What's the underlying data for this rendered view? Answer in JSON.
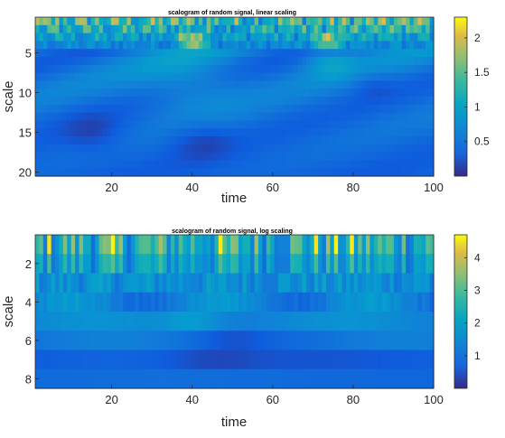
{
  "chart_data": [
    {
      "type": "heatmap",
      "title": "scalogram of random signal, linear scaling",
      "xlabel": "time",
      "ylabel": "scale",
      "xlim": [
        1,
        100
      ],
      "ylim": [
        1,
        20
      ],
      "xticks": [
        "20",
        "40",
        "60",
        "80",
        "100"
      ],
      "yticks": [
        "5",
        "10",
        "15",
        "20"
      ],
      "colorbar": {
        "range": [
          0,
          2.3
        ],
        "ticks": [
          "0.5",
          "1",
          "1.5",
          "2"
        ],
        "colormap": "parula"
      },
      "y_axis_reversed": true
    },
    {
      "type": "heatmap",
      "title": "scalogram of random signal, log scaling",
      "xlabel": "time",
      "ylabel": "scale",
      "xlim": [
        1,
        100
      ],
      "ylim": [
        1,
        8
      ],
      "xticks": [
        "20",
        "40",
        "60",
        "80",
        "100"
      ],
      "yticks": [
        "2",
        "4",
        "6",
        "8"
      ],
      "colorbar": {
        "range": [
          0,
          4.7
        ],
        "ticks": [
          "1",
          "2",
          "3",
          "4"
        ],
        "colormap": "parula"
      },
      "y_axis_reversed": true
    }
  ]
}
